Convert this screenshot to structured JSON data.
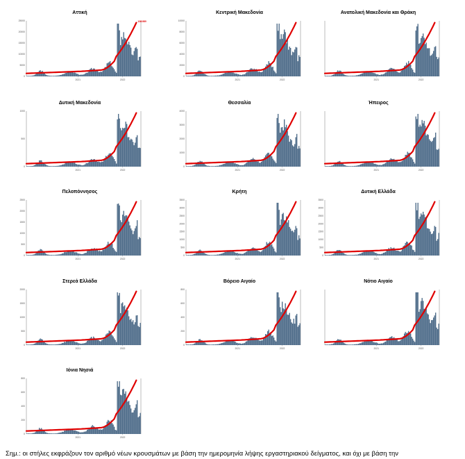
{
  "footnote": "Σημ.: οι στήλες εκφράζουν τον αριθμό νέων κρουσμάτων με βάση την ημερομηνία λήψης εργαστηριακού δείγματος, και όχι με βάση την",
  "colors": {
    "bars": "#4f6d8a",
    "line": "#e00000",
    "axis": "#555555"
  },
  "chart_data": [
    {
      "type": "bar",
      "title": "Αττική",
      "x_ticks": [
        "2021",
        "2022"
      ],
      "left_ticks": [
        "25000",
        "20000",
        "15000",
        "10000",
        "5000",
        "0"
      ],
      "right_ticks": [],
      "left_axis_label": "",
      "right_axis_label": "",
      "end_label": "1361989",
      "mid_label": ""
    },
    {
      "type": "bar",
      "title": "Κεντρική Μακεδονία",
      "x_ticks": [
        "2021",
        "2022"
      ],
      "left_ticks": [
        "10000",
        "8000",
        "6000",
        "4000",
        "2000",
        "0"
      ],
      "right_ticks": [],
      "left_axis_label": "",
      "right_axis_label": "",
      "end_label": "",
      "mid_label": ""
    },
    {
      "type": "bar",
      "title": "Ανατολική Μακεδονία και Θράκη",
      "x_ticks": [
        "2021",
        "2022"
      ],
      "left_ticks": [],
      "right_ticks": [],
      "left_axis_label": "",
      "right_axis_label": "",
      "end_label": "",
      "mid_label": ""
    },
    {
      "type": "bar",
      "title": "Δυτική Μακεδονία",
      "x_ticks": [
        "2021",
        "2022"
      ],
      "left_ticks": [
        "1000",
        "500",
        "0"
      ],
      "right_ticks": [],
      "left_axis_label": "",
      "right_axis_label": "",
      "end_label": "",
      "mid_label": ""
    },
    {
      "type": "bar",
      "title": "Θεσσαλία",
      "x_ticks": [
        "2021",
        "2022"
      ],
      "left_ticks": [
        "4000",
        "3000",
        "2000",
        "1000",
        "0"
      ],
      "right_ticks": [],
      "left_axis_label": "",
      "right_axis_label": "",
      "end_label": "",
      "mid_label": ""
    },
    {
      "type": "bar",
      "title": "Ήπειρος",
      "x_ticks": [
        "2021",
        "2022"
      ],
      "left_ticks": [],
      "right_ticks": [],
      "left_axis_label": "",
      "right_axis_label": "",
      "end_label": "",
      "mid_label": ""
    },
    {
      "type": "bar",
      "title": "Πελοπόννησος",
      "x_ticks": [
        "2021",
        "2022"
      ],
      "left_ticks": [
        "2500",
        "2000",
        "1500",
        "1000",
        "500",
        "0"
      ],
      "right_ticks": [],
      "left_axis_label": "",
      "right_axis_label": "",
      "end_label": "",
      "mid_label": ""
    },
    {
      "type": "bar",
      "title": "Κρήτη",
      "x_ticks": [
        "2021",
        "2022"
      ],
      "left_ticks": [
        "3500",
        "3000",
        "2500",
        "2000",
        "1500",
        "1000",
        "500",
        "0"
      ],
      "right_ticks": [],
      "left_axis_label": "",
      "right_axis_label": "",
      "end_label": "",
      "mid_label": ""
    },
    {
      "type": "bar",
      "title": "Δυτική Ελλάδα",
      "x_ticks": [
        "2021",
        "2022"
      ],
      "left_ticks": [
        "3500",
        "3000",
        "2500",
        "2000",
        "1500",
        "1000",
        "500",
        "0"
      ],
      "right_ticks": [],
      "left_axis_label": "",
      "right_axis_label": "",
      "end_label": "",
      "mid_label": ""
    },
    {
      "type": "bar",
      "title": "Στερεά Ελλάδα",
      "x_ticks": [
        "2021",
        "2022"
      ],
      "left_ticks": [
        "2000",
        "1500",
        "1000",
        "500",
        "0"
      ],
      "right_ticks": [],
      "left_axis_label": "",
      "right_axis_label": "",
      "end_label": "",
      "mid_label": ""
    },
    {
      "type": "bar",
      "title": "Βόρειο Αιγαίο",
      "x_ticks": [
        "2021",
        "2022"
      ],
      "left_ticks": [
        "800",
        "600",
        "400",
        "200",
        "0"
      ],
      "right_ticks": [],
      "left_axis_label": "",
      "right_axis_label": "",
      "end_label": "",
      "mid_label": ""
    },
    {
      "type": "bar",
      "title": "Νότιο Αιγαίο",
      "x_ticks": [
        "2021",
        "2022"
      ],
      "left_ticks": [],
      "right_ticks": [],
      "left_axis_label": "",
      "right_axis_label": "",
      "end_label": "",
      "mid_label": ""
    },
    {
      "type": "bar",
      "title": "Ιόνια Νησιά",
      "x_ticks": [
        "2021",
        "2022"
      ],
      "left_ticks": [
        "800",
        "600",
        "400",
        "200",
        "0"
      ],
      "right_ticks": [],
      "left_axis_label": "",
      "right_axis_label": "",
      "end_label": "",
      "mid_label": ""
    }
  ]
}
